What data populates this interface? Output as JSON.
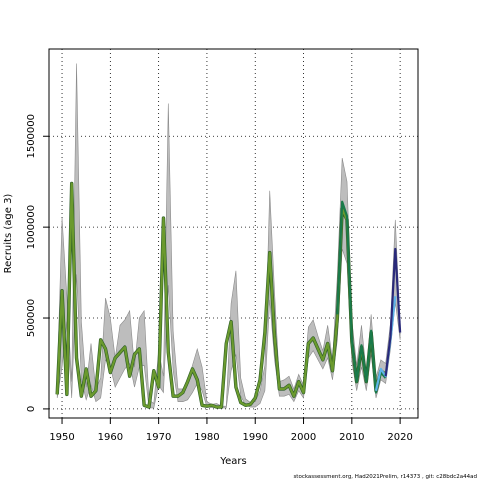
{
  "chart_data": {
    "type": "line",
    "title": "",
    "xlabel": "Years",
    "ylabel": "Recruits (age 3)",
    "xlim": [
      1947.3,
      2023.7
    ],
    "ylim": [
      -50000,
      1980000
    ],
    "xticks": [
      1950,
      1960,
      1970,
      1980,
      1990,
      2000,
      2010,
      2020
    ],
    "yticks": [
      0,
      500000,
      1000000,
      1500000
    ],
    "xtick_labels": [
      "1950",
      "1960",
      "1970",
      "1980",
      "1990",
      "2000",
      "2010",
      "2020"
    ],
    "ytick_labels": [
      "0",
      "500000",
      "1000000",
      "1500000"
    ],
    "grid": true,
    "footer": "stockassessment.org,  Had2021Prelim,  r14373 ,  git:  c28bdc2a44ad",
    "colors": {
      "band": "#bdbdbd",
      "band_edge": "#8a8a8a",
      "main": "#6b9a2e",
      "main_dark": "#2c5d27",
      "teal": "#1a7a4a",
      "lightblue": "#5fb4e8",
      "navy": "#2a2a7a"
    },
    "confidence_band": {
      "x": [
        1949,
        1950,
        1951,
        1952,
        1953,
        1954,
        1955,
        1956,
        1957,
        1958,
        1959,
        1960,
        1961,
        1962,
        1963,
        1964,
        1965,
        1966,
        1967,
        1968,
        1969,
        1970,
        1971,
        1972,
        1973,
        1974,
        1975,
        1976,
        1977,
        1978,
        1979,
        1980,
        1981,
        1982,
        1983,
        1984,
        1985,
        1986,
        1987,
        1988,
        1989,
        1990,
        1991,
        1992,
        1993,
        1994,
        1995,
        1996,
        1997,
        1998,
        1999,
        2000,
        2001,
        2002,
        2003,
        2004,
        2005,
        2006,
        2007,
        2008,
        2009,
        2010,
        2011,
        2012,
        2013,
        2014,
        2015,
        2016,
        2017,
        2018,
        2019,
        2020
      ],
      "lower": [
        60000,
        230000,
        480000,
        60000,
        740000,
        160000,
        50000,
        130000,
        40000,
        60000,
        270000,
        230000,
        120000,
        170000,
        220000,
        250000,
        120000,
        230000,
        240000,
        5000,
        5000,
        130000,
        90000,
        680000,
        210000,
        40000,
        40000,
        50000,
        90000,
        140000,
        100000,
        10000,
        8000,
        10000,
        5000,
        5000,
        210000,
        300000,
        70000,
        20000,
        10000,
        10000,
        30000,
        100000,
        600000,
        270000,
        70000,
        70000,
        80000,
        40000,
        100000,
        60000,
        280000,
        320000,
        270000,
        220000,
        280000,
        160000,
        380000,
        880000,
        800000,
        260000,
        100000,
        230000,
        100000,
        300000,
        60000,
        160000,
        140000,
        330000,
        590000,
        380000
      ],
      "upper": [
        150000,
        1050000,
        620000,
        150000,
        1900000,
        480000,
        120000,
        360000,
        110000,
        170000,
        610000,
        500000,
        280000,
        460000,
        490000,
        540000,
        230000,
        500000,
        540000,
        50000,
        30000,
        320000,
        180000,
        1680000,
        430000,
        110000,
        110000,
        150000,
        240000,
        330000,
        230000,
        40000,
        25000,
        30000,
        15000,
        15000,
        580000,
        760000,
        170000,
        55000,
        35000,
        40000,
        100000,
        240000,
        1200000,
        640000,
        150000,
        160000,
        180000,
        110000,
        190000,
        130000,
        450000,
        490000,
        400000,
        320000,
        460000,
        270000,
        730000,
        1380000,
        1250000,
        490000,
        240000,
        460000,
        200000,
        520000,
        170000,
        270000,
        250000,
        470000,
        1040000,
        460000
      ]
    },
    "series": [
      {
        "color_key": "main",
        "x": [
          1949,
          1950,
          1951,
          1952,
          1953,
          1954,
          1955,
          1956,
          1957,
          1958,
          1959,
          1960,
          1961,
          1962,
          1963,
          1964,
          1965,
          1966,
          1967,
          1968,
          1969,
          1970,
          1971,
          1972,
          1973,
          1974,
          1975,
          1976,
          1977,
          1978,
          1979,
          1980,
          1981,
          1982,
          1983,
          1984,
          1985,
          1986,
          1987,
          1988,
          1989,
          1990,
          1991,
          1992,
          1993,
          1994,
          1995,
          1996,
          1997,
          1998,
          1999,
          2000,
          2001,
          2002,
          2003,
          2004,
          2005,
          2006,
          2007,
          2008,
          2009,
          2010,
          2011,
          2012,
          2013,
          2014,
          2015,
          2016,
          2017
        ],
        "values": [
          80000,
          650000,
          80000,
          1240000,
          280000,
          70000,
          220000,
          70000,
          100000,
          380000,
          330000,
          200000,
          280000,
          310000,
          340000,
          180000,
          300000,
          330000,
          20000,
          10000,
          210000,
          120000,
          1050000,
          310000,
          70000,
          70000,
          90000,
          150000,
          220000,
          160000,
          20000,
          15000,
          20000,
          10000,
          10000,
          360000,
          480000,
          120000,
          35000,
          20000,
          25000,
          60000,
          160000,
          420000,
          860000,
          400000,
          110000,
          110000,
          130000,
          70000,
          150000,
          90000,
          360000,
          390000,
          330000,
          270000,
          360000,
          210000,
          500000,
          1100000,
          1040000,
          370000,
          150000,
          340000,
          150000,
          420000,
          100000,
          210000,
          190000
        ]
      },
      {
        "color_key": "teal",
        "x": [
          2007,
          2008,
          2009,
          2010,
          2011,
          2012,
          2013,
          2014,
          2015,
          2016,
          2017
        ],
        "values": [
          520000,
          1140000,
          1060000,
          380000,
          150000,
          350000,
          150000,
          430000,
          90000,
          200000,
          170000
        ]
      },
      {
        "color_key": "lightblue",
        "x": [
          2015,
          2016,
          2017,
          2018,
          2019
        ],
        "values": [
          100000,
          220000,
          180000,
          380000,
          620000
        ]
      },
      {
        "color_key": "navy",
        "x": [
          2017,
          2018,
          2019,
          2020
        ],
        "values": [
          180000,
          400000,
          880000,
          420000
        ]
      }
    ]
  }
}
